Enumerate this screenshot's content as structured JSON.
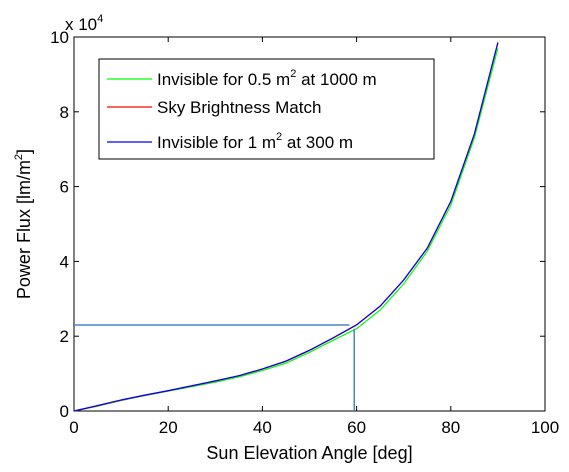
{
  "chart_data": {
    "type": "line",
    "title": "",
    "xlabel": "Sun Elevation Angle [deg]",
    "ylabel_main": "Power Flux [lm/m",
    "ylabel_sup": "2",
    "ylabel_tail": "]",
    "exponent_label": {
      "prefix": "x 10",
      "power": "4"
    },
    "xlim": [
      0,
      100
    ],
    "ylim": [
      0,
      100000
    ],
    "x_ticks": [
      0,
      20,
      40,
      60,
      80,
      100
    ],
    "y_ticks": [
      0,
      20000,
      40000,
      60000,
      80000,
      100000
    ],
    "x_tick_labels": [
      "0",
      "20",
      "40",
      "60",
      "80",
      "100"
    ],
    "y_tick_labels": [
      "0",
      "2",
      "4",
      "6",
      "8",
      "10"
    ],
    "grid": false,
    "legend_position": "top-left",
    "series": [
      {
        "name": "Invisible for 0.5 m",
        "name_sup": "2",
        "name_tail": " at 1000 m",
        "color": "#00ff00",
        "x": [
          0,
          5,
          10,
          15,
          20,
          25,
          30,
          35,
          40,
          45,
          50,
          55,
          60,
          65,
          70,
          75,
          80,
          85,
          90
        ],
        "y": [
          0,
          1300,
          2800,
          4100,
          5300,
          6500,
          7700,
          9100,
          10800,
          12800,
          15700,
          18900,
          22000,
          27000,
          34000,
          42700,
          55000,
          73000,
          97000
        ]
      },
      {
        "name": "Sky Brightness Match",
        "name_sup": "",
        "name_tail": "",
        "color": "#ff0000",
        "x": [
          0,
          5,
          10,
          15,
          20,
          25,
          30,
          35,
          40,
          45,
          50,
          55,
          60,
          65,
          70,
          75,
          80,
          85,
          90
        ],
        "y": [
          0,
          1400,
          2900,
          4200,
          5400,
          6700,
          8000,
          9400,
          11200,
          13300,
          16200,
          19500,
          23000,
          28000,
          35000,
          43500,
          56000,
          74000,
          98500
        ]
      },
      {
        "name": "Invisible for 1 m",
        "name_sup": "2",
        "name_tail": " at 300 m",
        "color": "#0000ff",
        "x": [
          0,
          5,
          10,
          15,
          20,
          25,
          30,
          35,
          40,
          45,
          50,
          55,
          60,
          65,
          70,
          75,
          80,
          85,
          90
        ],
        "y": [
          0,
          1450,
          2950,
          4250,
          5450,
          6750,
          8050,
          9450,
          11250,
          13350,
          16250,
          19550,
          23050,
          28050,
          35050,
          43550,
          56050,
          74050,
          98550
        ]
      }
    ],
    "reference_lines": [
      {
        "name": "horizontal-reference",
        "color": "#4a86c8",
        "x": [
          0,
          58.5
        ],
        "y": [
          23000,
          23000
        ]
      },
      {
        "name": "vertical-reference",
        "color": "#4a86c8",
        "x": [
          59.5,
          59.5
        ],
        "y": [
          0,
          22000
        ]
      }
    ]
  }
}
